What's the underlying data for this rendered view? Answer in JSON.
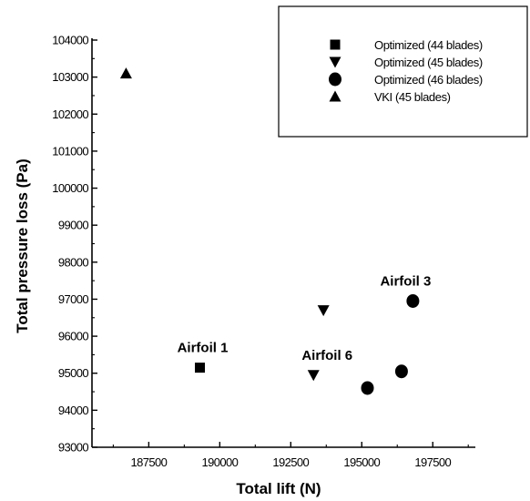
{
  "chart_data": {
    "type": "scatter",
    "xlabel": "Total lift (N)",
    "ylabel": "Total pressure loss (Pa)",
    "xlim": [
      185500,
      199000
    ],
    "ylim": [
      93000,
      104000
    ],
    "x_ticks": [
      187500,
      190000,
      192500,
      195000,
      197500
    ],
    "y_ticks": [
      93000,
      94000,
      95000,
      96000,
      97000,
      98000,
      99000,
      100000,
      101000,
      102000,
      103000,
      104000
    ],
    "grid": false,
    "legend_position": "top-right",
    "series": [
      {
        "name": "Optimized (44 blades)",
        "marker": "square",
        "points": [
          {
            "x": 189300,
            "y": 95150
          }
        ]
      },
      {
        "name": "Optimized (45 blades)",
        "marker": "triangle-down",
        "points": [
          {
            "x": 193650,
            "y": 96700
          },
          {
            "x": 193300,
            "y": 94950
          }
        ]
      },
      {
        "name": "Optimized (46 blades)",
        "marker": "circle",
        "points": [
          {
            "x": 195200,
            "y": 94600
          },
          {
            "x": 196400,
            "y": 95050
          },
          {
            "x": 196800,
            "y": 96950
          }
        ]
      },
      {
        "name": "VKI (45 blades)",
        "marker": "triangle-up",
        "points": [
          {
            "x": 186700,
            "y": 103100
          }
        ]
      }
    ],
    "annotations": [
      {
        "text": "Airfoil 1",
        "x": 189300,
        "y": 95150
      },
      {
        "text": "Airfoil 6",
        "x": 193300,
        "y": 94950
      },
      {
        "text": "Airfoil 3",
        "x": 196800,
        "y": 96950
      }
    ]
  },
  "colors": {
    "marker": "#000000",
    "axis": "#000000",
    "background": "#ffffff"
  }
}
